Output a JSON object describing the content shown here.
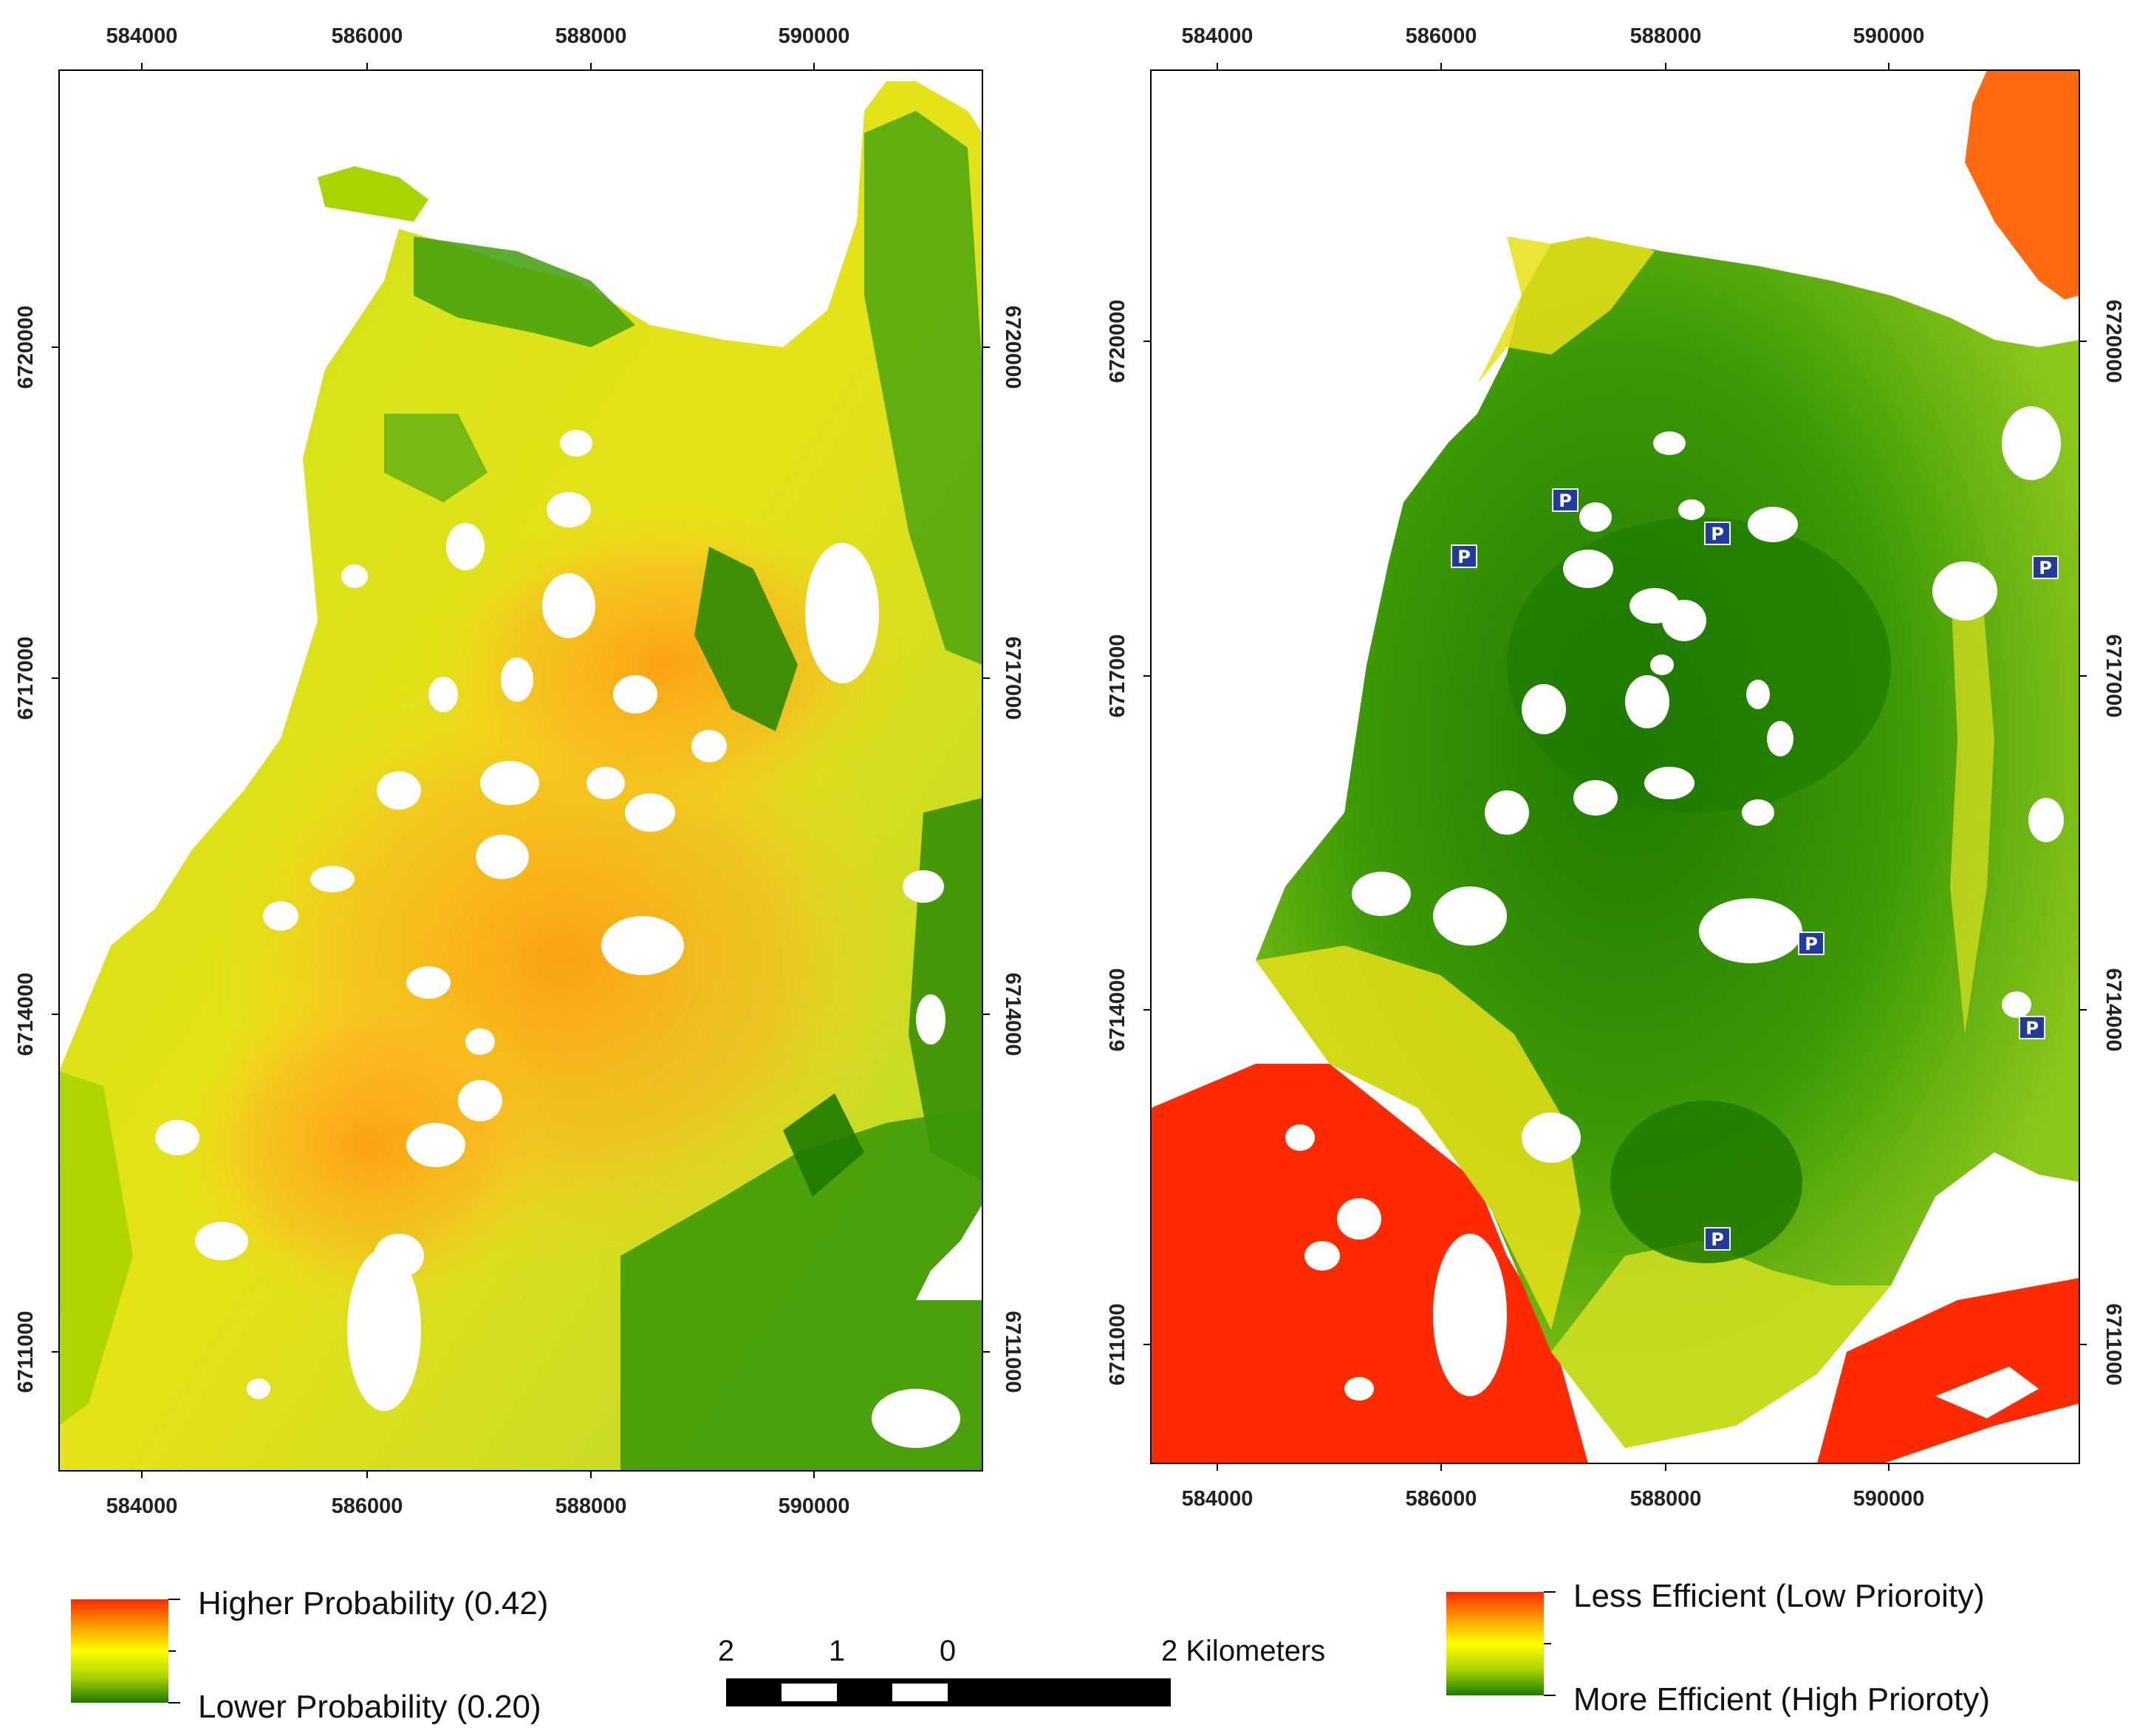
{
  "left_map": {
    "x_ticks": [
      "584000",
      "586000",
      "588000",
      "590000"
    ],
    "y_ticks": [
      "6720000",
      "6717000",
      "6714000",
      "6711000"
    ],
    "legend": {
      "high_label": "Higher Probability (0.42)",
      "low_label": "Lower Probability (0.20)",
      "high_value": 0.42,
      "low_value": 0.2,
      "colors": [
        "#ff2a00",
        "#ff9a00",
        "#ffff00",
        "#a8d400",
        "#1e7a00"
      ]
    }
  },
  "right_map": {
    "x_ticks": [
      "584000",
      "586000",
      "588000",
      "590000"
    ],
    "y_ticks": [
      "6720000",
      "6717000",
      "6714000",
      "6711000"
    ],
    "parking_symbol": "P",
    "parking_icon": "parking-icon",
    "parking_count": 7,
    "legend": {
      "high_label": "Less Efficient (Low Prioroity)",
      "low_label": "More Efficient (High Prioroty)",
      "colors": [
        "#ff2a00",
        "#ff9a00",
        "#ffff00",
        "#a8d400",
        "#1e7a00"
      ]
    }
  },
  "scale_bar": {
    "labels": [
      "2",
      "1",
      "0",
      "2 Kilometers"
    ]
  }
}
